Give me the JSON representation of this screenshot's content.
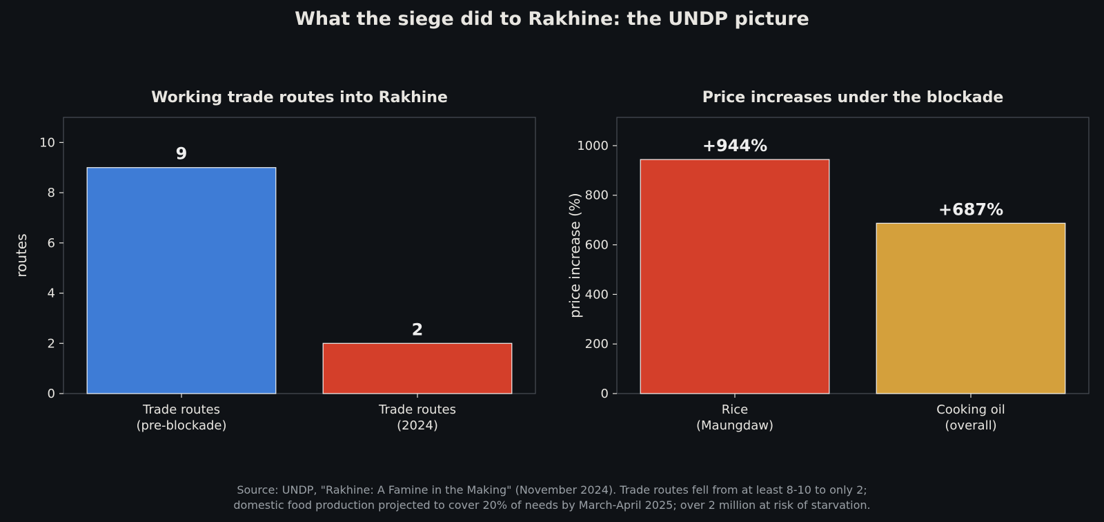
{
  "title": "What the siege did to Rakhine: the UNDP picture",
  "source_lines": [
    "Source: UNDP, \"Rakhine: A Famine in the Making\" (November 2024). Trade routes fell from at least 8-10 to only 2;",
    "domestic food production projected to cover 20% of needs by March-April 2025; over 2 million at risk of starvation."
  ],
  "colors": {
    "background": "#0f1216",
    "plot_background": "#0f1216",
    "frame": "#4a4f57",
    "text": "#e8e6e1",
    "bar_edge": "#f2f2f2",
    "blue": "#3e7cd6",
    "red": "#d43f2a",
    "gold": "#d4a03c"
  },
  "chart_data": [
    {
      "type": "bar",
      "title": "Working trade routes into Rakhine",
      "xlabel": "",
      "ylabel": "routes",
      "ylim": [
        0,
        11
      ],
      "yticks": [
        0,
        2,
        4,
        6,
        8,
        10
      ],
      "ytick_labels": [
        "0",
        "2",
        "4",
        "6",
        "8",
        "10"
      ],
      "categories": [
        [
          "Trade routes",
          "(pre-blockade)"
        ],
        [
          "Trade routes",
          "(2024)"
        ]
      ],
      "values": [
        9,
        2
      ],
      "data_labels": [
        "9",
        "2"
      ],
      "bar_colors": [
        "#3e7cd6",
        "#d43f2a"
      ],
      "grid": false,
      "legend": "none"
    },
    {
      "type": "bar",
      "title": "Price increases under the blockade",
      "xlabel": "",
      "ylabel": "price increase (%)",
      "ylim": [
        0,
        1114
      ],
      "yticks": [
        0,
        200,
        400,
        600,
        800,
        1000
      ],
      "ytick_labels": [
        "0",
        "200",
        "400",
        "600",
        "800",
        "1000"
      ],
      "categories": [
        [
          "Rice",
          "(Maungdaw)"
        ],
        [
          "Cooking oil",
          "(overall)"
        ]
      ],
      "values": [
        944,
        687
      ],
      "data_labels": [
        "+944%",
        "+687%"
      ],
      "bar_colors": [
        "#d43f2a",
        "#d4a03c"
      ],
      "grid": false,
      "legend": "none"
    }
  ]
}
